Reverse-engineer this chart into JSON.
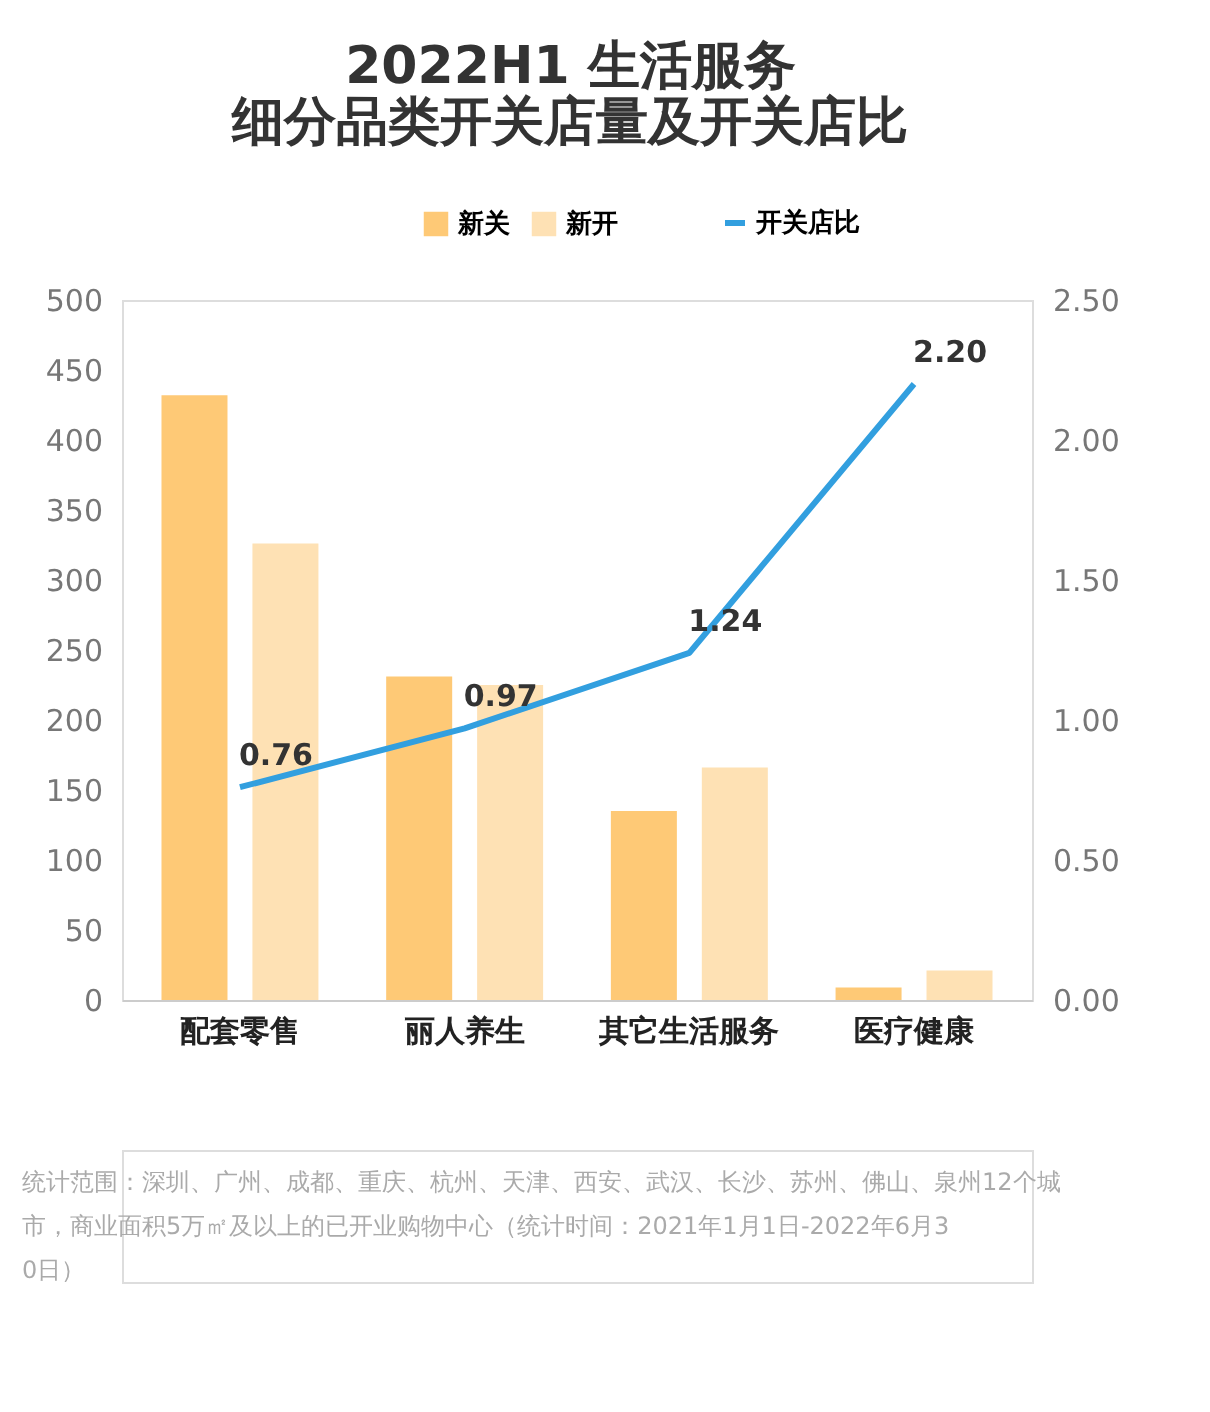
{
  "chart_data": {
    "type": "bar",
    "title": [
      "2022H1 生活服务",
      "细分品类开关店量及开关店比"
    ],
    "categories": [
      "配套零售",
      "丽人养生",
      "其它生活服务",
      "医疗健康"
    ],
    "series": [
      {
        "name": "新关",
        "color": "#fec976",
        "values": [
          432,
          231,
          135,
          9
        ]
      },
      {
        "name": "新开",
        "color": "#fee1b4",
        "values": [
          326,
          225,
          166,
          21
        ]
      },
      {
        "name": "开关店比",
        "type": "line",
        "axis": "y2",
        "color": "#329fdf",
        "values": [
          0.76,
          0.97,
          1.24,
          2.2
        ],
        "value_labels": [
          "0.76",
          "0.97",
          "1.24",
          "2.20"
        ]
      }
    ],
    "ylim": [
      0,
      500
    ],
    "yticks": [
      0,
      50,
      100,
      150,
      200,
      250,
      300,
      350,
      400,
      450,
      500
    ],
    "y2lim": [
      0,
      2.5
    ],
    "y2ticks": [
      {
        "value": 0,
        "label": "0.00"
      },
      {
        "value": 0.5,
        "label": "0.50"
      },
      {
        "value": 1,
        "label": "1.00"
      },
      {
        "value": 1.5,
        "label": "1.50"
      },
      {
        "value": 2,
        "label": "2.00"
      },
      {
        "value": 2.5,
        "label": "2.50"
      }
    ],
    "grid": false,
    "legend": "top",
    "annotations": [
      "统计范围：深圳、广州、成都、重庆、杭州、天津、西安、武汉、长沙、苏州、佛山、泉州12个城市，商业面积5万㎡及以上的已开业购物中心（统计时间：2021年1月1日-2022年6月30日）"
    ]
  }
}
